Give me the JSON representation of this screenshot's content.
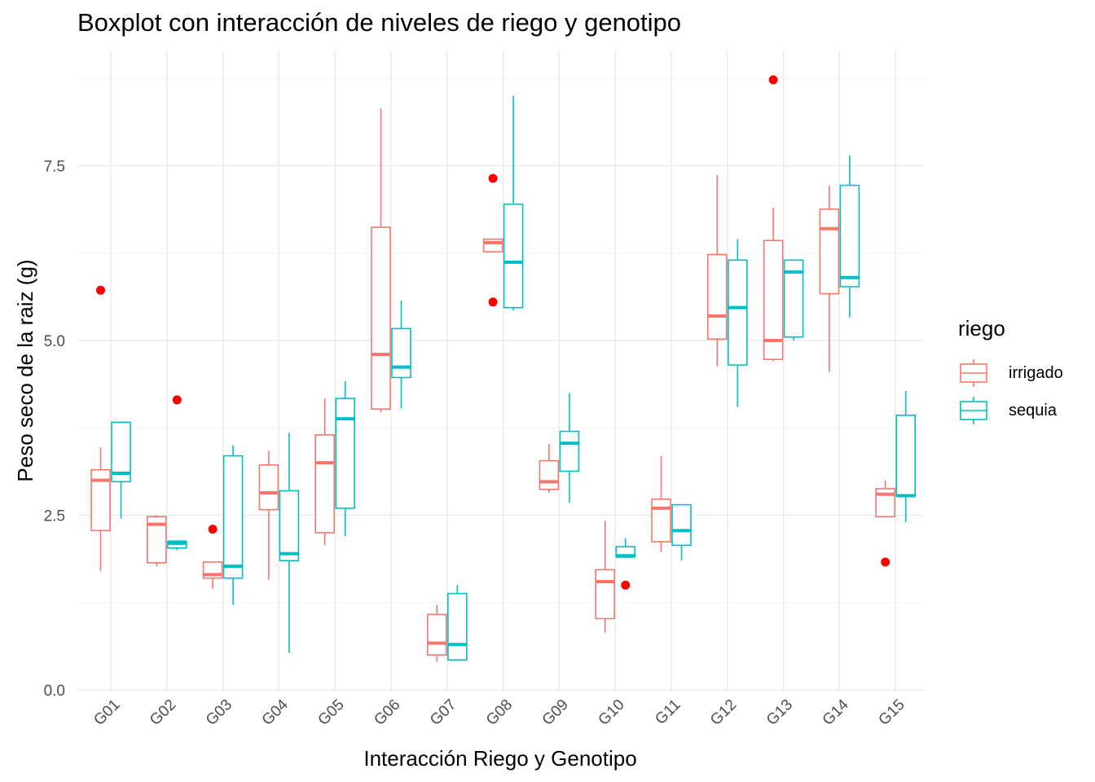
{
  "chart_data": {
    "type": "boxplot",
    "title": "Boxplot con interacción de niveles de riego y genotipo",
    "xlabel": "Interacción Riego y Genotipo",
    "ylabel": "Peso seco de la raiz (g)",
    "ylim": [
      0,
      9
    ],
    "yticks": [
      0,
      2.5,
      5,
      7.5
    ],
    "ytick_labels": [
      "0.0",
      "2.5",
      "5.0",
      "7.5"
    ],
    "grid": true,
    "outlier_color": "#ff0000",
    "categories": [
      "G01",
      "G02",
      "G03",
      "G04",
      "G05",
      "G06",
      "G07",
      "G08",
      "G09",
      "G10",
      "G11",
      "G12",
      "G13",
      "G14",
      "G15"
    ],
    "legend": {
      "title": "riego",
      "position": "right",
      "entries": [
        {
          "name": "irrigado",
          "color": "#f8766d"
        },
        {
          "name": "sequia",
          "color": "#00bfc4"
        }
      ]
    },
    "series": [
      {
        "name": "irrigado",
        "color": "#f8766d",
        "boxes": [
          {
            "cat": "G01",
            "min": 1.7,
            "q1": 2.28,
            "median": 3.0,
            "q3": 3.15,
            "max": 3.47,
            "outliers": [
              5.72
            ]
          },
          {
            "cat": "G02",
            "min": 1.77,
            "q1": 1.82,
            "median": 2.37,
            "q3": 2.48,
            "max": 2.5,
            "outliers": []
          },
          {
            "cat": "G03",
            "min": 1.45,
            "q1": 1.6,
            "median": 1.65,
            "q3": 1.83,
            "max": 1.83,
            "outliers": [
              2.3
            ]
          },
          {
            "cat": "G04",
            "min": 1.58,
            "q1": 2.58,
            "median": 2.82,
            "q3": 3.22,
            "max": 3.42,
            "outliers": []
          },
          {
            "cat": "G05",
            "min": 2.07,
            "q1": 2.25,
            "median": 3.25,
            "q3": 3.65,
            "max": 4.17,
            "outliers": []
          },
          {
            "cat": "G06",
            "min": 3.97,
            "q1": 4.02,
            "median": 4.8,
            "q3": 6.62,
            "max": 8.32,
            "outliers": []
          },
          {
            "cat": "G07",
            "min": 0.4,
            "q1": 0.5,
            "median": 0.67,
            "q3": 1.08,
            "max": 1.22,
            "outliers": []
          },
          {
            "cat": "G08",
            "min": 6.27,
            "q1": 6.27,
            "median": 6.4,
            "q3": 6.45,
            "max": 6.45,
            "outliers": [
              7.32,
              5.55
            ]
          },
          {
            "cat": "G09",
            "min": 2.82,
            "q1": 2.87,
            "median": 2.98,
            "q3": 3.28,
            "max": 3.52,
            "outliers": []
          },
          {
            "cat": "G10",
            "min": 0.82,
            "q1": 1.02,
            "median": 1.55,
            "q3": 1.72,
            "max": 2.42,
            "outliers": []
          },
          {
            "cat": "G11",
            "min": 1.97,
            "q1": 2.12,
            "median": 2.6,
            "q3": 2.73,
            "max": 3.35,
            "outliers": []
          },
          {
            "cat": "G12",
            "min": 4.63,
            "q1": 5.02,
            "median": 5.35,
            "q3": 6.23,
            "max": 7.37,
            "outliers": []
          },
          {
            "cat": "G13",
            "min": 4.7,
            "q1": 4.73,
            "median": 5.0,
            "q3": 6.43,
            "max": 6.9,
            "outliers": [
              8.73
            ]
          },
          {
            "cat": "G14",
            "min": 4.55,
            "q1": 5.67,
            "median": 6.6,
            "q3": 6.88,
            "max": 7.22,
            "outliers": []
          },
          {
            "cat": "G15",
            "min": 2.48,
            "q1": 2.48,
            "median": 2.8,
            "q3": 2.88,
            "max": 3.0,
            "outliers": [
              1.83
            ]
          }
        ]
      },
      {
        "name": "sequia",
        "color": "#00bfc4",
        "boxes": [
          {
            "cat": "G01",
            "min": 2.45,
            "q1": 2.98,
            "median": 3.1,
            "q3": 3.83,
            "max": 3.83,
            "outliers": []
          },
          {
            "cat": "G02",
            "min": 2.0,
            "q1": 2.03,
            "median": 2.1,
            "q3": 2.13,
            "max": 2.13,
            "outliers": [
              4.15
            ]
          },
          {
            "cat": "G03",
            "min": 1.22,
            "q1": 1.6,
            "median": 1.77,
            "q3": 3.35,
            "max": 3.5,
            "outliers": []
          },
          {
            "cat": "G04",
            "min": 0.53,
            "q1": 1.85,
            "median": 1.95,
            "q3": 2.85,
            "max": 3.68,
            "outliers": []
          },
          {
            "cat": "G05",
            "min": 2.2,
            "q1": 2.6,
            "median": 3.88,
            "q3": 4.17,
            "max": 4.42,
            "outliers": []
          },
          {
            "cat": "G06",
            "min": 4.03,
            "q1": 4.47,
            "median": 4.62,
            "q3": 5.17,
            "max": 5.57,
            "outliers": []
          },
          {
            "cat": "G07",
            "min": 0.43,
            "q1": 0.43,
            "median": 0.65,
            "q3": 1.38,
            "max": 1.5,
            "outliers": []
          },
          {
            "cat": "G08",
            "min": 5.43,
            "q1": 5.47,
            "median": 6.12,
            "q3": 6.95,
            "max": 8.5,
            "outliers": []
          },
          {
            "cat": "G09",
            "min": 2.68,
            "q1": 3.13,
            "median": 3.53,
            "q3": 3.7,
            "max": 4.25,
            "outliers": []
          },
          {
            "cat": "G10",
            "min": 1.9,
            "q1": 1.9,
            "median": 1.92,
            "q3": 2.05,
            "max": 2.17,
            "outliers": [
              1.5
            ]
          },
          {
            "cat": "G11",
            "min": 1.85,
            "q1": 2.07,
            "median": 2.28,
            "q3": 2.65,
            "max": 2.65,
            "outliers": []
          },
          {
            "cat": "G12",
            "min": 4.05,
            "q1": 4.65,
            "median": 5.47,
            "q3": 6.15,
            "max": 6.45,
            "outliers": []
          },
          {
            "cat": "G13",
            "min": 5.0,
            "q1": 5.05,
            "median": 5.98,
            "q3": 6.15,
            "max": 6.15,
            "outliers": []
          },
          {
            "cat": "G14",
            "min": 5.33,
            "q1": 5.77,
            "median": 5.9,
            "q3": 7.22,
            "max": 7.65,
            "outliers": []
          },
          {
            "cat": "G15",
            "min": 2.4,
            "q1": 2.77,
            "median": 2.78,
            "q3": 3.93,
            "max": 4.28,
            "outliers": []
          }
        ]
      }
    ]
  }
}
